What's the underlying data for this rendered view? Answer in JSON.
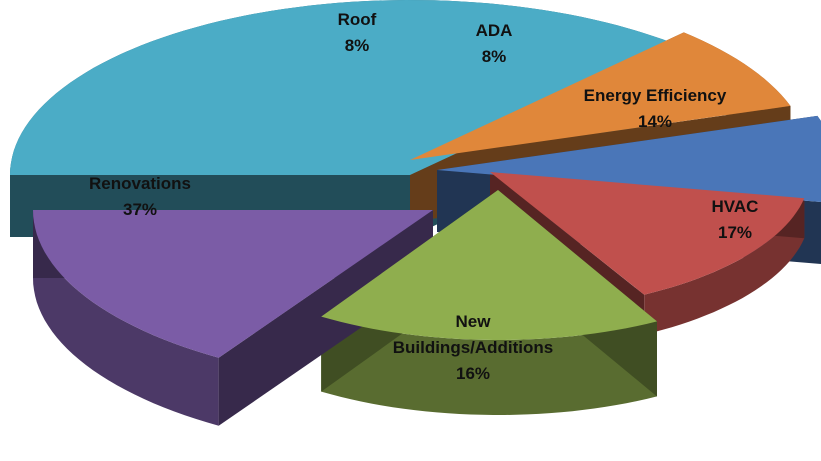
{
  "chart_data": {
    "type": "pie",
    "style": "3d-exploded",
    "slices": [
      {
        "name": "Renovations",
        "label_lines": [
          "Renovations"
        ],
        "value": 37,
        "value_label": "37%",
        "color": "#4BACC6"
      },
      {
        "name": "Roof",
        "label_lines": [
          "Roof"
        ],
        "value": 8,
        "value_label": "8%",
        "color": "#E0873A"
      },
      {
        "name": "ADA",
        "label_lines": [
          "ADA"
        ],
        "value": 8,
        "value_label": "8%",
        "color": "#4A76B8"
      },
      {
        "name": "Energy Efficiency",
        "label_lines": [
          "Energy Efficiency"
        ],
        "value": 14,
        "value_label": "14%",
        "color": "#C0504D"
      },
      {
        "name": "HVAC",
        "label_lines": [
          "HVAC"
        ],
        "value": 17,
        "value_label": "17%",
        "color": "#8FAE4E"
      },
      {
        "name": "New Buildings/Additions",
        "label_lines": [
          "New",
          "Buildings/Additions"
        ],
        "value": 16,
        "value_label": "16%",
        "color": "#7B5CA6"
      }
    ],
    "title": "",
    "legend": "none"
  }
}
